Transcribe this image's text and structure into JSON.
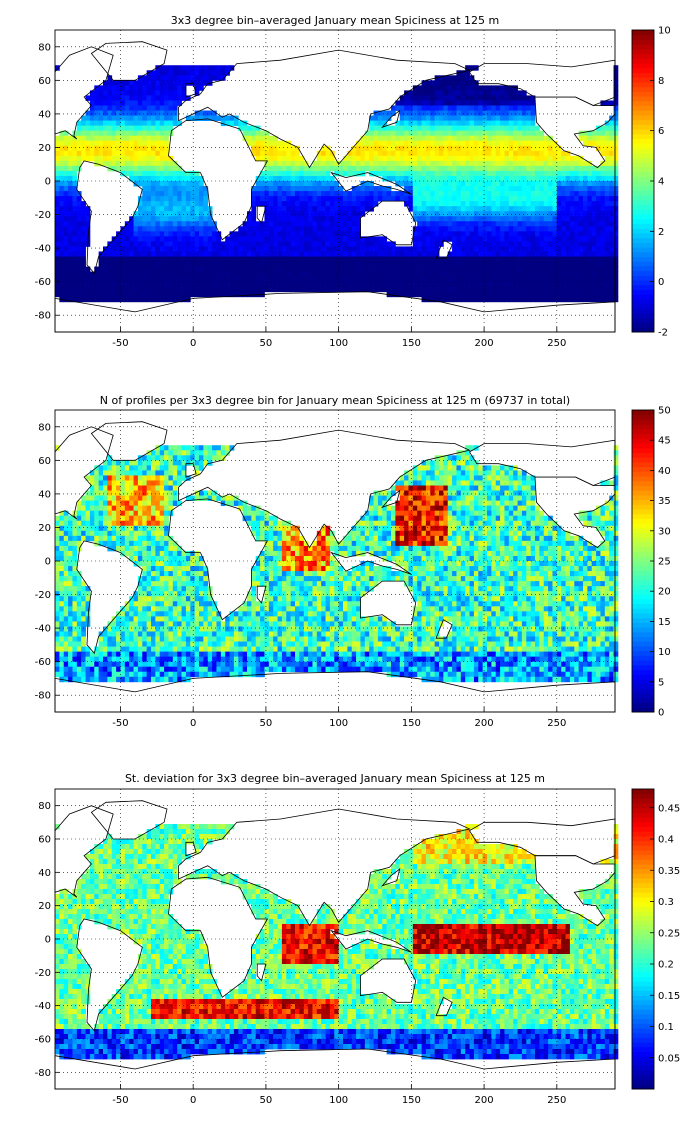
{
  "figure": {
    "panels": [
      {
        "title": "3x3 degree bin–averaged January mean Spiciness at 125 m",
        "x_ticks": [
          "-50",
          "0",
          "50",
          "100",
          "150",
          "200",
          "250"
        ],
        "y_ticks": [
          "80",
          "60",
          "40",
          "20",
          "0",
          "-20",
          "-40",
          "-60",
          "-80"
        ],
        "colorbar_ticks": [
          "10",
          "8",
          "6",
          "4",
          "2",
          "0",
          "-2"
        ],
        "field": "spiciness"
      },
      {
        "title": "N of profiles per 3x3 degree bin for January mean Spiciness at 125 m (69737 in total)",
        "x_ticks": [
          "-50",
          "0",
          "50",
          "100",
          "150",
          "200",
          "250"
        ],
        "y_ticks": [
          "80",
          "60",
          "40",
          "20",
          "0",
          "-20",
          "-40",
          "-60",
          "-80"
        ],
        "colorbar_ticks": [
          "50",
          "45",
          "40",
          "35",
          "30",
          "25",
          "20",
          "15",
          "10",
          "5",
          "0"
        ],
        "field": "count"
      },
      {
        "title": "St. deviation for 3x3 degree bin–averaged January mean Spiciness at 125 m",
        "x_ticks": [
          "-50",
          "0",
          "50",
          "100",
          "150",
          "200",
          "250"
        ],
        "y_ticks": [
          "80",
          "60",
          "40",
          "20",
          "0",
          "-20",
          "-40",
          "-60",
          "-80"
        ],
        "colorbar_ticks": [
          "0.45",
          "0.4",
          "0.35",
          "0.3",
          "0.25",
          "0.2",
          "0.15",
          "0.1",
          "0.05"
        ],
        "field": "std"
      }
    ]
  },
  "chart_data": [
    {
      "type": "heatmap",
      "title": "3x3 degree bin–averaged January mean Spiciness at 125 m",
      "xlim": [
        -95,
        290
      ],
      "ylim": [
        -90,
        90
      ],
      "grid": true,
      "colorbar": {
        "min": -2,
        "max": 10,
        "colormap": "jet",
        "placement": "right"
      },
      "bin_size_deg": 3
    },
    {
      "type": "heatmap",
      "title": "N of profiles per 3x3 degree bin for January mean Spiciness at 125 m (69737 in total)",
      "total_profiles": 69737,
      "xlim": [
        -95,
        290
      ],
      "ylim": [
        -90,
        90
      ],
      "grid": true,
      "colorbar": {
        "min": 0,
        "max": 50,
        "colormap": "jet",
        "placement": "right"
      },
      "bin_size_deg": 3
    },
    {
      "type": "heatmap",
      "title": "St. deviation for 3x3 degree bin–averaged January mean Spiciness at 125 m",
      "xlim": [
        -95,
        290
      ],
      "ylim": [
        -90,
        90
      ],
      "grid": true,
      "colorbar": {
        "min": 0,
        "max": 0.48,
        "colormap": "jet",
        "placement": "right"
      },
      "bin_size_deg": 3
    }
  ]
}
